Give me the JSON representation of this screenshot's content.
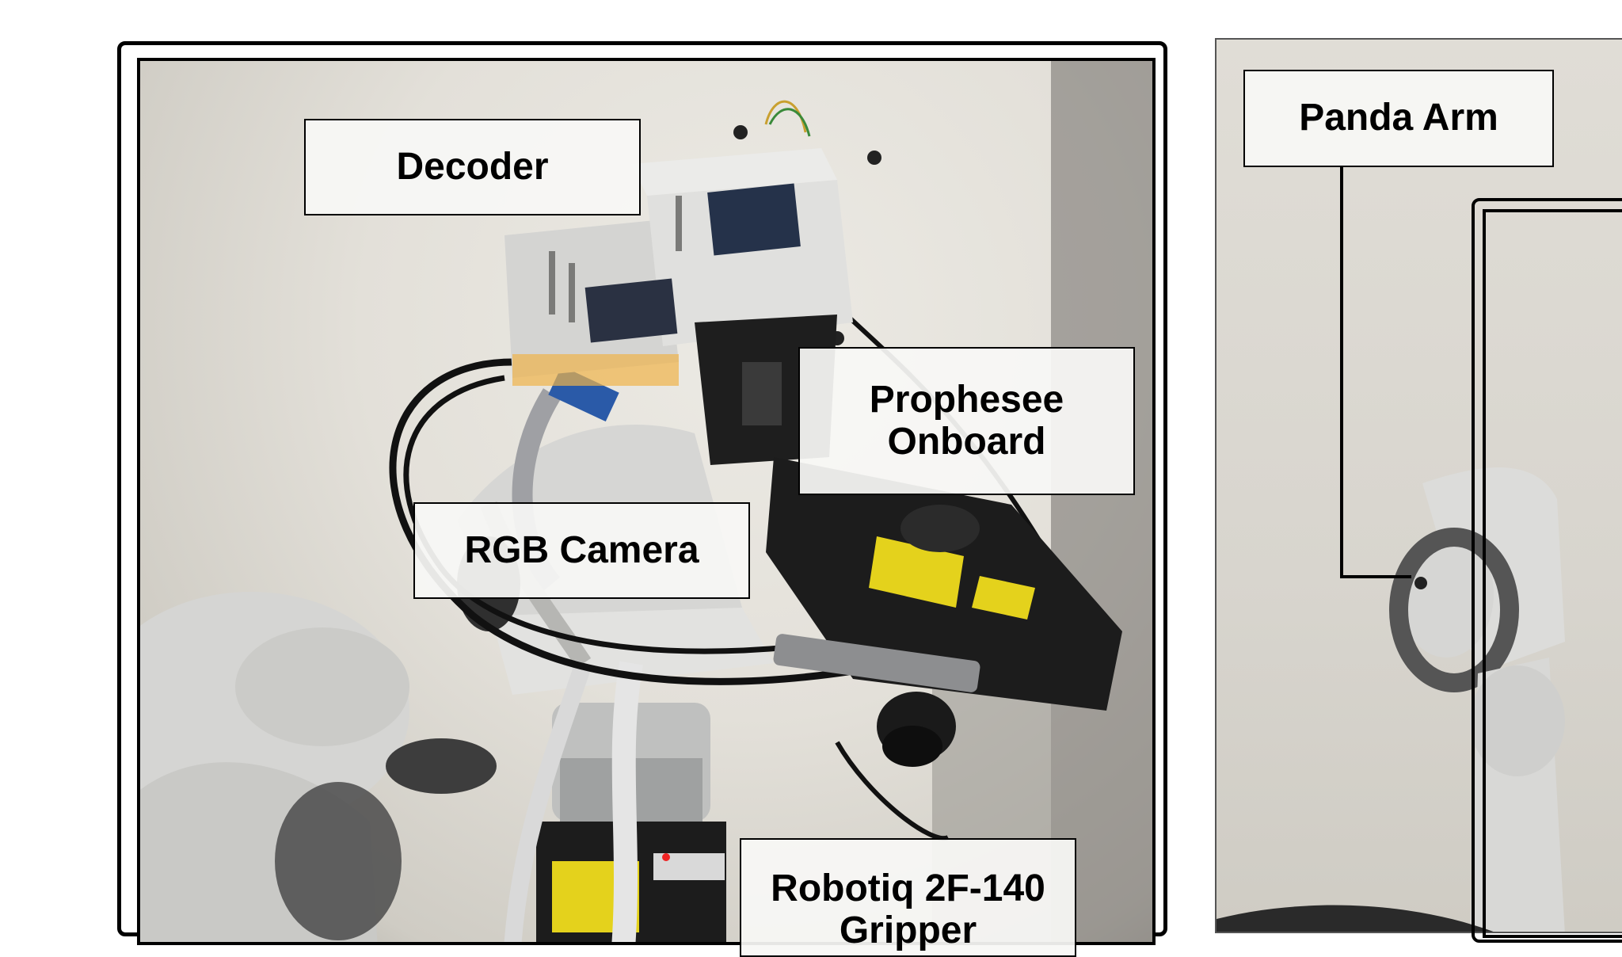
{
  "labels": {
    "decoder": "Decoder",
    "prophesee": "Prophesee\nOnboard",
    "rgb_camera": "RGB Camera",
    "gripper": "Robotiq 2F-140 Gripper",
    "panda_arm": "Panda Arm"
  },
  "icons": {
    "photo_left": "robot-sensor-rig-photo",
    "photo_right": "panda-arm-photo"
  },
  "colors": {
    "frame": "#000000",
    "label_bg": "#f7f7f5",
    "housing": "#dcdcd8",
    "sensor_body": "#1c1c1c",
    "sticker": "#e4d21c"
  }
}
